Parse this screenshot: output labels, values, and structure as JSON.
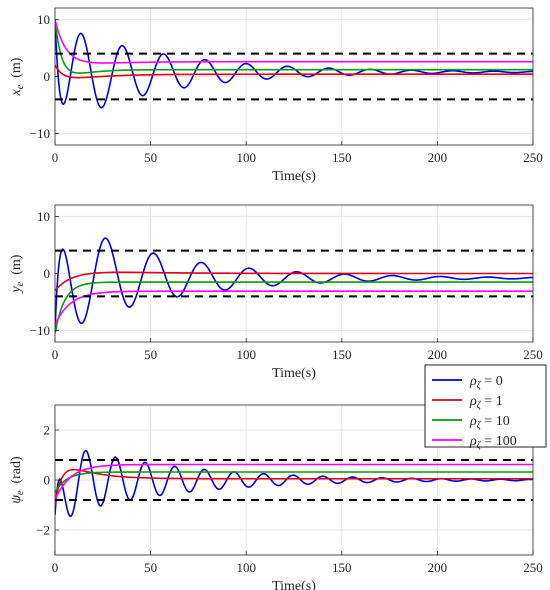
{
  "colors": {
    "rho0": "#0000e0",
    "rho1": "#e0001a",
    "rho10": "#00a000",
    "rho100": "#ff00ff",
    "bound": "#000000",
    "grid": "#e6e6e6",
    "axis": "#262626"
  },
  "legend": {
    "placement": "right, between second and third subplots",
    "entries": [
      {
        "series_key": "rho0",
        "label": "ρζ = 0"
      },
      {
        "series_key": "rho1",
        "label": "ρζ = 1"
      },
      {
        "series_key": "rho10",
        "label": "ρζ = 10"
      },
      {
        "series_key": "rho100",
        "label": "ρζ = 100"
      }
    ]
  },
  "chart_data": [
    {
      "type": "line",
      "ylabel": "x_e (m)",
      "ylabel_symbol": "x",
      "ylabel_sub": "e",
      "ylabel_unit": "(m)",
      "xlabel": "Time(s)",
      "xlim": [
        0,
        250
      ],
      "ylim": [
        -12,
        12
      ],
      "xticks": [
        "0",
        "50",
        "100",
        "150",
        "200",
        "250"
      ],
      "yticks": [
        "-10",
        "0",
        "10"
      ],
      "grid": true,
      "bounds": [
        4,
        -4
      ],
      "series": [
        {
          "key": "rho0",
          "name": "ρζ = 0",
          "x0": 10,
          "A": -9.2,
          "T": 21.6,
          "tau": 55,
          "phase": 0.72,
          "offset": 0.8,
          "ssTau": 30
        },
        {
          "key": "rho1",
          "name": "ρζ = 1",
          "x0": 2,
          "dip": -0.8,
          "settle": 0.4,
          "t1": 5,
          "t2": 18
        },
        {
          "key": "rho10",
          "name": "ρζ = 10",
          "x0": 10,
          "dip": -1.8,
          "settle": 1.2,
          "t1": 4,
          "t2": 10
        },
        {
          "key": "rho100",
          "name": "ρζ = 100",
          "x0": 10,
          "dip": -0.6,
          "settle": 2.6,
          "t1": 6,
          "t2": 20
        }
      ]
    },
    {
      "type": "line",
      "ylabel": "y_e (m)",
      "ylabel_symbol": "y",
      "ylabel_sub": "e",
      "ylabel_unit": "(m)",
      "xlabel": "Time(s)",
      "xlim": [
        0,
        250
      ],
      "ylim": [
        -12,
        12
      ],
      "xticks": [
        "0",
        "50",
        "100",
        "150",
        "200",
        "250"
      ],
      "yticks": [
        "-10",
        "0",
        "10"
      ],
      "grid": true,
      "bounds": [
        4,
        -4
      ],
      "series": [
        {
          "key": "rho0",
          "name": "ρζ = 0",
          "x0": -10,
          "A": 10.8,
          "T": 25.0,
          "tau": 55,
          "phase": 1.15,
          "offset": -0.8,
          "ssTau": 30
        },
        {
          "key": "rho1",
          "name": "ρζ = 1",
          "x0": -3,
          "dip": 0.5,
          "settle": 0.0,
          "t1": 10,
          "t2": 30
        },
        {
          "key": "rho10",
          "name": "ρζ = 10",
          "x0": -10.5,
          "dip": 0.0,
          "settle": -1.5,
          "t1": 5,
          "t2": 12
        },
        {
          "key": "rho100",
          "name": "ρζ = 100",
          "x0": -9,
          "dip": 0.0,
          "settle": -3.1,
          "t1": 8,
          "t2": 20
        }
      ]
    },
    {
      "type": "line",
      "ylabel": "ψ_e (rad)",
      "ylabel_symbol": "ψ",
      "ylabel_sub": "e",
      "ylabel_unit": "(rad)",
      "xlabel": "Time(s)",
      "xlim": [
        0,
        250
      ],
      "ylim": [
        -3,
        3
      ],
      "xticks": [
        "0",
        "50",
        "100",
        "150",
        "200",
        "250"
      ],
      "yticks": [
        "-2",
        "0",
        "2"
      ],
      "grid": true,
      "bounds": [
        0.8,
        -0.8
      ],
      "series": [
        {
          "key": "rho0",
          "name": "ρζ = 0",
          "x0": -1.4,
          "A": 1.55,
          "T": 15.5,
          "tau": 60,
          "phase": 1.3,
          "offset": 0.0,
          "ssTau": 30
        },
        {
          "key": "rho1",
          "name": "ρζ = 1",
          "x0": -1.0,
          "dip": 0.5,
          "settle": 0.05,
          "t1": 4,
          "t2": 14
        },
        {
          "key": "rho10",
          "name": "ρζ = 10",
          "x0": -0.5,
          "dip": 0.0,
          "settle": 0.32,
          "t1": 6,
          "t2": 14
        },
        {
          "key": "rho100",
          "name": "ρζ = 100",
          "x0": -0.8,
          "dip": 0.0,
          "settle": 0.62,
          "t1": 8,
          "t2": 18
        }
      ]
    }
  ]
}
